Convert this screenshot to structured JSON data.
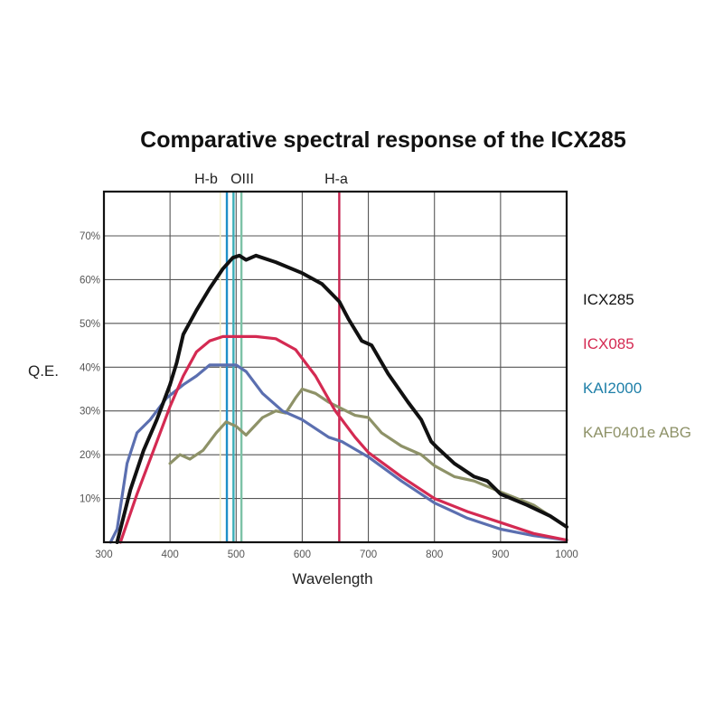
{
  "chart_data": {
    "type": "line",
    "title": "Comparative spectral response of the ICX285",
    "xlabel": "Wavelength",
    "ylabel": "Q.E.",
    "xlim": [
      300,
      1000
    ],
    "ylim": [
      0,
      80
    ],
    "grid": true,
    "x_ticks": [
      300,
      400,
      500,
      600,
      700,
      800,
      900,
      1000
    ],
    "x_tick_labels": [
      "300",
      "400",
      "500",
      "600",
      "700",
      "800",
      "900",
      "1000"
    ],
    "y_ticks": [
      10,
      20,
      30,
      40,
      50,
      60,
      70
    ],
    "y_tick_labels": [
      "10%",
      "20%",
      "30%",
      "40%",
      "50%",
      "60%",
      "70%"
    ],
    "legend_position": "right",
    "reference_lines": [
      {
        "name": "H-b",
        "x": 486,
        "color": "#1f8fc8",
        "label": "H-b"
      },
      {
        "name": "OIII-a",
        "x": 496,
        "color": "#3aaeb8",
        "label": "OIII"
      },
      {
        "name": "OIII-b",
        "x": 508,
        "color": "#7cc2a6",
        "label": ""
      },
      {
        "name": "H-a",
        "x": 656,
        "color": "#c8234f",
        "label": "H-a"
      }
    ],
    "series": [
      {
        "name": "ICX285",
        "color": "#111111",
        "x": [
          320,
          340,
          360,
          380,
          400,
          410,
          420,
          440,
          460,
          480,
          495,
          505,
          515,
          530,
          560,
          600,
          630,
          656,
          670,
          690,
          705,
          730,
          760,
          780,
          795,
          805,
          830,
          860,
          880,
          900,
          940,
          975,
          1000
        ],
        "y": [
          0,
          12,
          21,
          28,
          36,
          41,
          47.5,
          53,
          58,
          62.5,
          65,
          65.5,
          64.5,
          65.5,
          64,
          61.5,
          59,
          55,
          51,
          46,
          45,
          38.5,
          32,
          28,
          23,
          21.5,
          18,
          15,
          14,
          11,
          8.5,
          6,
          3.5
        ]
      },
      {
        "name": "ICX085",
        "color": "#d42a52",
        "x": [
          325,
          350,
          375,
          400,
          420,
          440,
          460,
          480,
          500,
          530,
          560,
          590,
          620,
          650,
          680,
          700,
          750,
          800,
          850,
          900,
          950,
          1000
        ],
        "y": [
          0,
          11,
          21,
          31,
          38,
          43.5,
          46,
          47,
          47,
          47,
          46.5,
          44,
          38,
          30,
          24,
          20.5,
          15,
          10,
          7,
          4.5,
          2,
          0.5
        ]
      },
      {
        "name": "KAI2000",
        "color": "#5b6fb0",
        "label_color": "#1e7fa8",
        "x": [
          310,
          320,
          335,
          350,
          370,
          395,
          420,
          440,
          460,
          480,
          500,
          515,
          540,
          570,
          600,
          640,
          660,
          700,
          750,
          800,
          850,
          900,
          950,
          1000
        ],
        "y": [
          0,
          3,
          18,
          25,
          28,
          33,
          36,
          38,
          40.5,
          40.5,
          40.5,
          39,
          34,
          30,
          28,
          24,
          23,
          19.5,
          14,
          9,
          5.5,
          3,
          1.5,
          0.5
        ]
      },
      {
        "name": "KAF0401e ABG",
        "color": "#8e9268",
        "x": [
          400,
          415,
          430,
          450,
          470,
          485,
          500,
          515,
          540,
          560,
          575,
          590,
          600,
          620,
          640,
          660,
          680,
          700,
          720,
          750,
          780,
          800,
          830,
          860,
          900,
          950,
          1000
        ],
        "y": [
          18,
          20,
          19,
          21,
          25,
          27.5,
          26.5,
          24.5,
          28.5,
          30,
          29.5,
          33,
          35,
          34,
          32,
          30.5,
          29,
          28.5,
          25,
          22,
          20,
          17.5,
          15,
          14,
          11.5,
          8.5,
          3.5
        ]
      }
    ]
  }
}
